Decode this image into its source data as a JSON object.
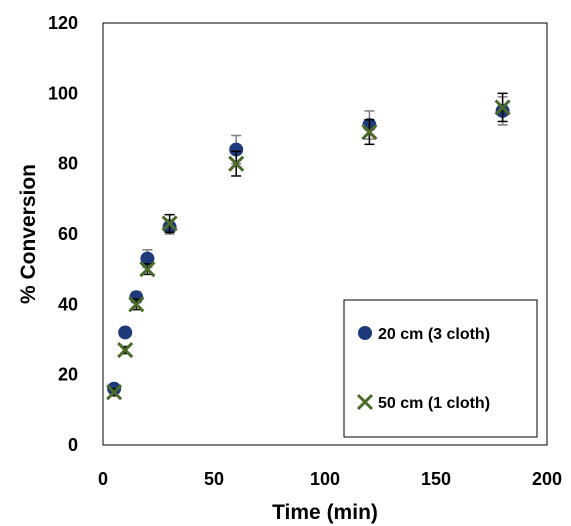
{
  "chart_data": {
    "type": "scatter",
    "xlabel": "Time (min)",
    "ylabel": "% Conversion",
    "xlim": [
      0,
      200
    ],
    "ylim": [
      0,
      120
    ],
    "x_ticks": [
      0,
      50,
      100,
      150,
      200
    ],
    "y_ticks": [
      0,
      20,
      40,
      60,
      80,
      100,
      120
    ],
    "grid": false,
    "legend_position": "bottom-right",
    "series": [
      {
        "name": "20 cm (3 cloth)",
        "marker": "circle",
        "color": "#1f3a7a",
        "x": [
          5,
          10,
          15,
          20,
          30,
          60,
          120,
          180
        ],
        "y": [
          16,
          32,
          42,
          53,
          62,
          84,
          91,
          95
        ],
        "error": [
          1,
          1,
          1.5,
          2.5,
          2,
          4,
          4,
          4
        ]
      },
      {
        "name": "50 cm (1 cloth)",
        "marker": "x",
        "color": "#4a6b2a",
        "x": [
          5,
          10,
          15,
          20,
          30,
          60,
          120,
          180
        ],
        "y": [
          15,
          27,
          40,
          50,
          63,
          80,
          89,
          96
        ],
        "error": [
          1,
          1,
          1.5,
          1.5,
          2.5,
          3.5,
          3.5,
          4
        ]
      }
    ]
  }
}
